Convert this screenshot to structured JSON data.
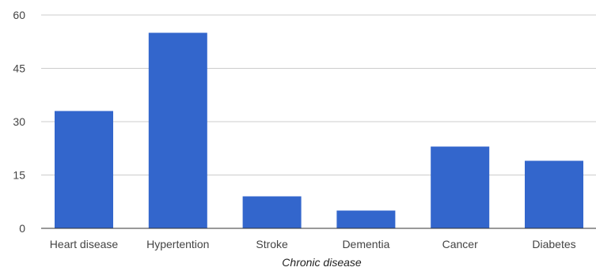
{
  "chart_data": {
    "type": "bar",
    "title": "",
    "xlabel": "Chronic disease",
    "ylabel": "",
    "categories": [
      "Heart disease",
      "Hypertention",
      "Stroke",
      "Dementia",
      "Cancer",
      "Diabetes"
    ],
    "values": [
      33,
      55,
      9,
      5,
      23,
      19
    ],
    "ylim": [
      0,
      60
    ],
    "yticks": [
      "0",
      "15",
      "30",
      "45",
      "60"
    ],
    "grid": true,
    "legend": "none",
    "colors": {
      "bar": "#3366cc",
      "grid": "#cccccc",
      "baseline": "#333333"
    }
  }
}
